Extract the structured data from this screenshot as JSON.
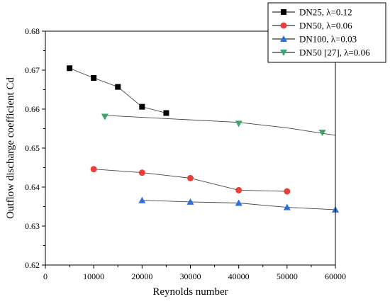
{
  "chart_data": {
    "type": "line",
    "title": "",
    "xlabel": "Reynolds number",
    "ylabel": "Outflow discharge coefficient Cd",
    "xlim": [
      0,
      60000
    ],
    "ylim": [
      0.62,
      0.68
    ],
    "xticks": [
      0,
      10000,
      20000,
      30000,
      40000,
      50000,
      60000
    ],
    "yticks": [
      0.62,
      0.63,
      0.64,
      0.65,
      0.66,
      0.67,
      0.68
    ],
    "xtick_labels": [
      "0",
      "10000",
      "20000",
      "30000",
      "40000",
      "50000",
      "60000"
    ],
    "ytick_labels": [
      "0.62",
      "0.63",
      "0.64",
      "0.65",
      "0.66",
      "0.67",
      "0.68"
    ],
    "grid": false,
    "legend_position": "top-right",
    "series": [
      {
        "name": "DN25, λ=0.12",
        "marker": "square",
        "color": "#000000",
        "points": [
          [
            5000,
            0.6705
          ],
          [
            10000,
            0.668
          ],
          [
            15000,
            0.6657
          ],
          [
            20000,
            0.6606
          ],
          [
            25000,
            0.659
          ]
        ],
        "line": [
          [
            5000,
            0.6705
          ],
          [
            10000,
            0.668
          ],
          [
            15000,
            0.6657
          ],
          [
            20000,
            0.6606
          ],
          [
            25000,
            0.659
          ]
        ]
      },
      {
        "name": "DN50, λ=0.06",
        "marker": "circle",
        "color": "#e8413c",
        "points": [
          [
            10000,
            0.6446
          ],
          [
            20000,
            0.6437
          ],
          [
            30000,
            0.6423
          ],
          [
            40000,
            0.6392
          ],
          [
            50000,
            0.6389
          ]
        ],
        "line": [
          [
            10000,
            0.6446
          ],
          [
            20000,
            0.6437
          ],
          [
            30000,
            0.6423
          ],
          [
            40000,
            0.6392
          ],
          [
            50000,
            0.6389
          ]
        ]
      },
      {
        "name": "DN100, λ=0.03",
        "marker": "triangle-up",
        "color": "#2f6fd6",
        "points": [
          [
            20000,
            0.6366
          ],
          [
            30000,
            0.6362
          ],
          [
            40000,
            0.6359
          ],
          [
            50000,
            0.6348
          ],
          [
            60000,
            0.6342
          ]
        ],
        "line": [
          [
            20000,
            0.6366
          ],
          [
            30000,
            0.6362
          ],
          [
            40000,
            0.6359
          ],
          [
            50000,
            0.6348
          ],
          [
            60000,
            0.6342
          ]
        ]
      },
      {
        "name": "DN50 [27], λ=0.06",
        "marker": "triangle-down",
        "color": "#3aa66b",
        "points": [
          [
            12300,
            0.6581
          ],
          [
            40000,
            0.6563
          ],
          [
            57300,
            0.654
          ]
        ],
        "line": [
          [
            12300,
            0.6584
          ],
          [
            40000,
            0.6566
          ],
          [
            50000,
            0.6552
          ],
          [
            60000,
            0.6533
          ]
        ]
      }
    ]
  }
}
